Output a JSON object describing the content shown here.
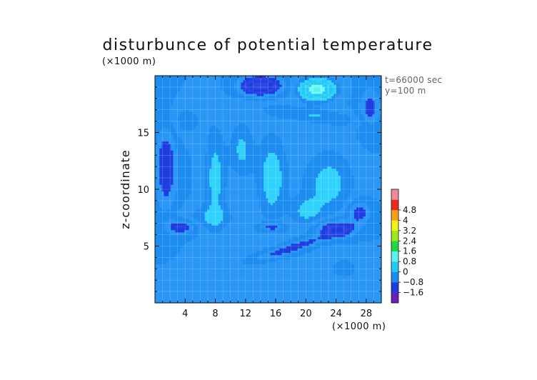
{
  "chart_data": {
    "type": "heatmap",
    "title": "disturbunce of potential temperature",
    "ylabel": "z-coordinate",
    "x_unit": "(×1000 m)",
    "y_unit": "(×1000 m)",
    "xlim": [
      0,
      30
    ],
    "ylim": [
      0,
      20
    ],
    "x_ticks": [
      4,
      8,
      12,
      16,
      20,
      24,
      28
    ],
    "y_ticks": [
      5,
      10,
      15
    ],
    "annotations": [
      "t=66000 sec",
      "y=100 m"
    ],
    "colorbar": {
      "levels": [
        -2.4,
        -1.6,
        -0.8,
        0,
        0.8,
        1.6,
        2.4,
        3.2,
        4,
        4.8,
        5.6
      ],
      "colors": [
        "#6a1fb8",
        "#1f3ce0",
        "#1c8cf0",
        "#23c8f5",
        "#5ef2ee",
        "#22d84a",
        "#9cea1e",
        "#f4f21a",
        "#f5a01a",
        "#ee2a1e",
        "#f08a9a"
      ],
      "labels": [
        "4.8",
        "4",
        "3.2",
        "2.4",
        "1.6",
        "0.8",
        "0",
        "−0.8",
        "−1.6"
      ]
    },
    "background_value": -0.4,
    "features": [
      {
        "kind": "blob",
        "x": 14,
        "y": 19.1,
        "sx": 2.6,
        "sy": 0.8,
        "amp": -1.2
      },
      {
        "kind": "blob",
        "x": 21.5,
        "y": 18.8,
        "sx": 2.2,
        "sy": 0.9,
        "amp": 1.5
      },
      {
        "kind": "blob",
        "x": 1.5,
        "y": 12,
        "sx": 1.5,
        "sy": 4,
        "amp": -0.6
      },
      {
        "kind": "blob",
        "x": 28.5,
        "y": 17,
        "sx": 1.5,
        "sy": 2,
        "amp": -0.5
      },
      {
        "kind": "blob",
        "x": 3.5,
        "y": 6.7,
        "sx": 1.8,
        "sy": 0.6,
        "amp": -0.7
      },
      {
        "kind": "blob",
        "x": 15.5,
        "y": 6.7,
        "sx": 1.5,
        "sy": 0.45,
        "amp": -0.7
      },
      {
        "kind": "blob",
        "x": 24,
        "y": 6.5,
        "sx": 2.5,
        "sy": 0.8,
        "amp": -0.9
      },
      {
        "kind": "blob",
        "x": 27,
        "y": 8,
        "sx": 1.5,
        "sy": 1,
        "amp": -0.6
      },
      {
        "kind": "blob",
        "x": 23,
        "y": 10.5,
        "sx": 3.5,
        "sy": 3,
        "amp": 0.5
      },
      {
        "kind": "blob",
        "x": 15.5,
        "y": 11,
        "sx": 2,
        "sy": 4,
        "amp": 0.55
      },
      {
        "kind": "blob",
        "x": 8,
        "y": 11,
        "sx": 1.5,
        "sy": 4.5,
        "amp": 0.5
      },
      {
        "kind": "blob",
        "x": 11.5,
        "y": 13.5,
        "sx": 1.5,
        "sy": 2.5,
        "amp": 0.45
      },
      {
        "kind": "blob",
        "x": 7,
        "y": 7.5,
        "sx": 4,
        "sy": 1,
        "amp": 0.3
      },
      {
        "kind": "blob",
        "x": 20,
        "y": 8,
        "sx": 2,
        "sy": 1.2,
        "amp": 0.4
      },
      {
        "kind": "blob",
        "x": 4,
        "y": 16,
        "sx": 2.5,
        "sy": 1.5,
        "amp": 0.3
      },
      {
        "kind": "blob",
        "x": 10,
        "y": 2.5,
        "sx": 5,
        "sy": 1.5,
        "amp": 0.2
      },
      {
        "kind": "blob",
        "x": 25,
        "y": 3,
        "sx": 3,
        "sy": 1.5,
        "amp": 0.25
      },
      {
        "kind": "band",
        "x": 18,
        "y": 4.8,
        "angle": 12,
        "length": 5,
        "width": 0.45,
        "amp": -0.6
      },
      {
        "kind": "band",
        "x": 21,
        "y": 16.5,
        "angle": -5,
        "length": 7,
        "width": 0.7,
        "amp": 0.4
      }
    ]
  }
}
